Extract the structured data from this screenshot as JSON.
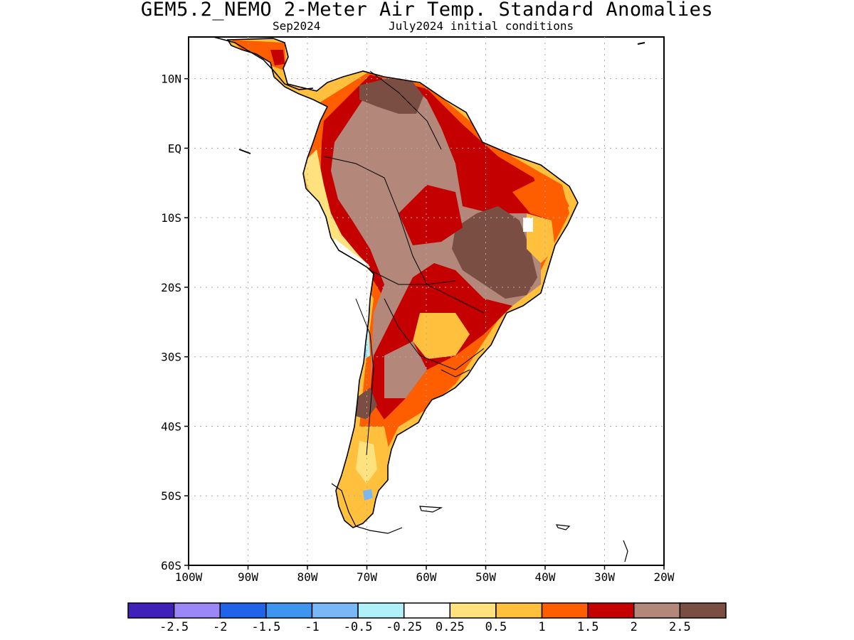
{
  "header": {
    "title": "GEM5.2_NEMO 2-Meter Air Temp. Standard Anomalies",
    "valid_month": "Sep2024",
    "init_conditions": "July2024 initial conditions"
  },
  "map": {
    "lon_range": [
      -100,
      -20
    ],
    "lat_range": [
      -60,
      16
    ],
    "lat_labels": [
      {
        "lat": 10,
        "label": "10N"
      },
      {
        "lat": 0,
        "label": "EQ"
      },
      {
        "lat": -10,
        "label": "10S"
      },
      {
        "lat": -20,
        "label": "20S"
      },
      {
        "lat": -30,
        "label": "30S"
      },
      {
        "lat": -40,
        "label": "40S"
      },
      {
        "lat": -50,
        "label": "50S"
      },
      {
        "lat": -60,
        "label": "60S"
      }
    ],
    "lon_labels": [
      {
        "lon": -100,
        "label": "100W"
      },
      {
        "lon": -90,
        "label": "90W"
      },
      {
        "lon": -80,
        "label": "80W"
      },
      {
        "lon": -70,
        "label": "70W"
      },
      {
        "lon": -60,
        "label": "60W"
      },
      {
        "lon": -50,
        "label": "50W"
      },
      {
        "lon": -40,
        "label": "40W"
      },
      {
        "lon": -30,
        "label": "30W"
      },
      {
        "lon": -20,
        "label": "20W"
      }
    ]
  },
  "colorbar": {
    "colors": [
      "#3f20b8",
      "#9b87f5",
      "#1f63e8",
      "#3e95f0",
      "#78b8f5",
      "#b0f0f8",
      "#ffffff",
      "#ffe27e",
      "#ffc13d",
      "#ff5e00",
      "#c40000",
      "#b3877a",
      "#7a4e42"
    ],
    "labels": [
      "-2.5",
      "-2",
      "-1.5",
      "-1",
      "-0.5",
      "-0.25",
      "0.25",
      "0.5",
      "1",
      "1.5",
      "2",
      "2.5"
    ]
  }
}
